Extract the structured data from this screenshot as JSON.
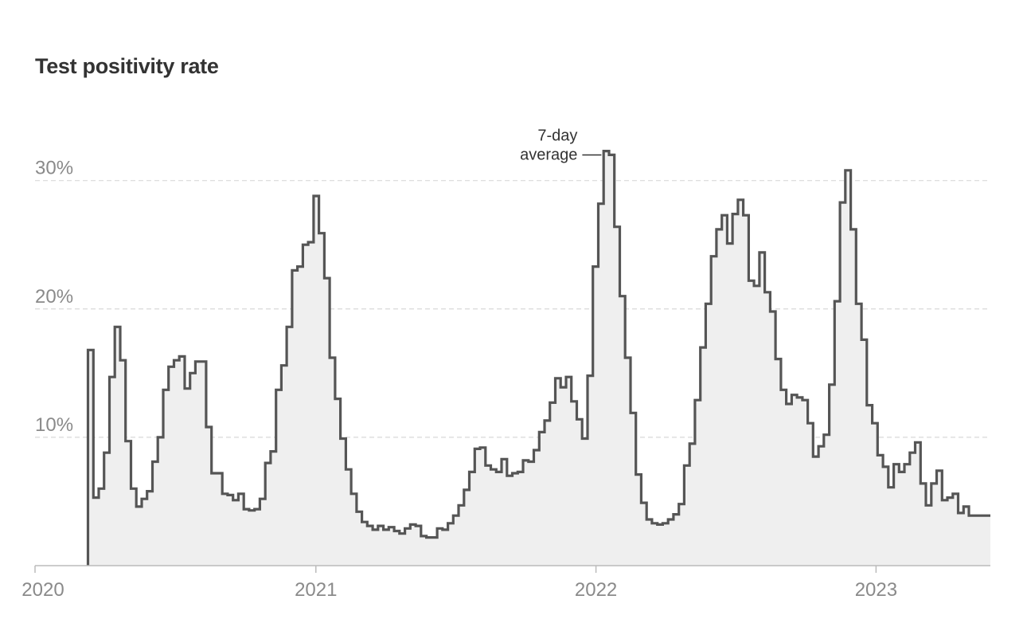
{
  "chart_data": {
    "type": "area",
    "title": "Test positivity rate",
    "subtitle": "",
    "xlabel": "",
    "ylabel": "",
    "x_ticks": [
      "2020",
      "2021",
      "2022",
      "2023"
    ],
    "y_ticks": [
      "10%",
      "20%",
      "30%"
    ],
    "y_tick_values": [
      10,
      20,
      30
    ],
    "xlim": [
      "2020-01-01",
      "2023-05-30"
    ],
    "ylim": [
      0,
      36
    ],
    "grid": "horizontal dashed",
    "step": true,
    "annotation": {
      "lines": [
        "7-day",
        "average"
      ],
      "x": "2022-01-06",
      "y": 32
    },
    "colors": {
      "line": "#555555",
      "fill": "#efefef",
      "grid": "#d9d9d9",
      "axis": "#bbbbbb"
    },
    "series": [
      {
        "name": "",
        "points": [
          [
            "2020-03-10",
            0
          ],
          [
            "2020-03-10",
            16.8
          ],
          [
            "2020-03-17",
            5.3
          ],
          [
            "2020-03-24",
            6
          ],
          [
            "2020-03-31",
            8.8
          ],
          [
            "2020-04-07",
            14.7
          ],
          [
            "2020-04-14",
            18.6
          ],
          [
            "2020-04-21",
            16
          ],
          [
            "2020-04-28",
            9.7
          ],
          [
            "2020-05-05",
            6
          ],
          [
            "2020-05-12",
            4.6
          ],
          [
            "2020-05-19",
            5.2
          ],
          [
            "2020-05-26",
            5.8
          ],
          [
            "2020-06-02",
            8.1
          ],
          [
            "2020-06-09",
            10
          ],
          [
            "2020-06-16",
            13.7
          ],
          [
            "2020-06-23",
            15.5
          ],
          [
            "2020-06-30",
            16
          ],
          [
            "2020-07-07",
            16.3
          ],
          [
            "2020-07-14",
            13.8
          ],
          [
            "2020-07-21",
            15
          ],
          [
            "2020-07-28",
            15.9
          ],
          [
            "2020-08-04",
            15.9
          ],
          [
            "2020-08-11",
            10.8
          ],
          [
            "2020-08-18",
            7.2
          ],
          [
            "2020-08-25",
            7.2
          ],
          [
            "2020-09-01",
            5.6
          ],
          [
            "2020-09-08",
            5.5
          ],
          [
            "2020-09-15",
            5.1
          ],
          [
            "2020-09-22",
            5.6
          ],
          [
            "2020-09-29",
            4.4
          ],
          [
            "2020-10-06",
            4.3
          ],
          [
            "2020-10-13",
            4.4
          ],
          [
            "2020-10-20",
            5.2
          ],
          [
            "2020-10-27",
            8
          ],
          [
            "2020-11-03",
            8.9
          ],
          [
            "2020-11-10",
            13.7
          ],
          [
            "2020-11-17",
            15.6
          ],
          [
            "2020-11-24",
            18.6
          ],
          [
            "2020-12-01",
            23
          ],
          [
            "2020-12-08",
            23.3
          ],
          [
            "2020-12-15",
            25
          ],
          [
            "2020-12-22",
            25.2
          ],
          [
            "2020-12-29",
            28.8
          ],
          [
            "2021-01-05",
            25.9
          ],
          [
            "2021-01-12",
            22.4
          ],
          [
            "2021-01-19",
            16.2
          ],
          [
            "2021-01-26",
            13
          ],
          [
            "2021-02-02",
            9.9
          ],
          [
            "2021-02-09",
            7.5
          ],
          [
            "2021-02-16",
            5.6
          ],
          [
            "2021-02-23",
            4.2
          ],
          [
            "2021-03-02",
            3.4
          ],
          [
            "2021-03-09",
            3.1
          ],
          [
            "2021-03-16",
            2.8
          ],
          [
            "2021-03-23",
            3.1
          ],
          [
            "2021-03-30",
            2.8
          ],
          [
            "2021-04-06",
            3
          ],
          [
            "2021-04-13",
            2.7
          ],
          [
            "2021-04-20",
            2.5
          ],
          [
            "2021-04-27",
            2.9
          ],
          [
            "2021-05-04",
            3.2
          ],
          [
            "2021-05-11",
            3.1
          ],
          [
            "2021-05-18",
            2.3
          ],
          [
            "2021-05-25",
            2.2
          ],
          [
            "2021-06-01",
            2.2
          ],
          [
            "2021-06-08",
            2.9
          ],
          [
            "2021-06-15",
            2.8
          ],
          [
            "2021-06-22",
            3.3
          ],
          [
            "2021-06-29",
            3.9
          ],
          [
            "2021-07-06",
            4.7
          ],
          [
            "2021-07-13",
            5.9
          ],
          [
            "2021-07-20",
            7.3
          ],
          [
            "2021-07-27",
            9.1
          ],
          [
            "2021-08-03",
            9.2
          ],
          [
            "2021-08-10",
            7.8
          ],
          [
            "2021-08-17",
            7.5
          ],
          [
            "2021-08-24",
            7.3
          ],
          [
            "2021-08-31",
            8.3
          ],
          [
            "2021-09-07",
            7
          ],
          [
            "2021-09-14",
            7.2
          ],
          [
            "2021-09-21",
            7.3
          ],
          [
            "2021-09-28",
            8.2
          ],
          [
            "2021-10-05",
            8.1
          ],
          [
            "2021-10-12",
            9
          ],
          [
            "2021-10-19",
            10.4
          ],
          [
            "2021-10-26",
            11.3
          ],
          [
            "2021-11-02",
            12.7
          ],
          [
            "2021-11-09",
            14.6
          ],
          [
            "2021-11-16",
            13.9
          ],
          [
            "2021-11-23",
            14.7
          ],
          [
            "2021-11-30",
            12.8
          ],
          [
            "2021-12-07",
            11.4
          ],
          [
            "2021-12-14",
            9.9
          ],
          [
            "2021-12-21",
            14.8
          ],
          [
            "2021-12-28",
            23.3
          ],
          [
            "2022-01-04",
            28.2
          ],
          [
            "2022-01-11",
            32.3
          ],
          [
            "2022-01-18",
            32
          ],
          [
            "2022-01-25",
            26.4
          ],
          [
            "2022-02-01",
            21
          ],
          [
            "2022-02-08",
            16.2
          ],
          [
            "2022-02-15",
            11.9
          ],
          [
            "2022-02-22",
            7.1
          ],
          [
            "2022-03-01",
            4.9
          ],
          [
            "2022-03-08",
            3.6
          ],
          [
            "2022-03-15",
            3.3
          ],
          [
            "2022-03-22",
            3.2
          ],
          [
            "2022-03-29",
            3.3
          ],
          [
            "2022-04-05",
            3.6
          ],
          [
            "2022-04-12",
            4
          ],
          [
            "2022-04-19",
            4.8
          ],
          [
            "2022-04-26",
            7.8
          ],
          [
            "2022-05-03",
            9.5
          ],
          [
            "2022-05-10",
            12.9
          ],
          [
            "2022-05-17",
            17
          ],
          [
            "2022-05-24",
            20.4
          ],
          [
            "2022-05-31",
            24.1
          ],
          [
            "2022-06-07",
            26.2
          ],
          [
            "2022-06-14",
            27.3
          ],
          [
            "2022-06-21",
            25.1
          ],
          [
            "2022-06-28",
            27.4
          ],
          [
            "2022-07-05",
            28.5
          ],
          [
            "2022-07-12",
            27.3
          ],
          [
            "2022-07-19",
            22.2
          ],
          [
            "2022-07-26",
            21.8
          ],
          [
            "2022-08-02",
            24.4
          ],
          [
            "2022-08-09",
            21.3
          ],
          [
            "2022-08-16",
            19.8
          ],
          [
            "2022-08-23",
            16.1
          ],
          [
            "2022-08-30",
            13.7
          ],
          [
            "2022-09-06",
            12.6
          ],
          [
            "2022-09-13",
            13.3
          ],
          [
            "2022-09-20",
            13.1
          ],
          [
            "2022-09-27",
            12.9
          ],
          [
            "2022-10-04",
            11.1
          ],
          [
            "2022-10-11",
            8.5
          ],
          [
            "2022-10-18",
            9.3
          ],
          [
            "2022-10-25",
            10.2
          ],
          [
            "2022-11-01",
            14.1
          ],
          [
            "2022-11-08",
            20.6
          ],
          [
            "2022-11-15",
            28.3
          ],
          [
            "2022-11-22",
            30.8
          ],
          [
            "2022-11-29",
            26.2
          ],
          [
            "2022-12-06",
            20.4
          ],
          [
            "2022-12-13",
            17.6
          ],
          [
            "2022-12-20",
            12.5
          ],
          [
            "2022-12-27",
            11.1
          ],
          [
            "2023-01-03",
            8.6
          ],
          [
            "2023-01-10",
            7.7
          ],
          [
            "2023-01-17",
            6.1
          ],
          [
            "2023-01-24",
            7.9
          ],
          [
            "2023-01-31",
            7.3
          ],
          [
            "2023-02-07",
            7.9
          ],
          [
            "2023-02-14",
            8.8
          ],
          [
            "2023-02-21",
            9.6
          ],
          [
            "2023-02-28",
            6.4
          ],
          [
            "2023-03-07",
            4.7
          ],
          [
            "2023-03-14",
            6.4
          ],
          [
            "2023-03-21",
            7.4
          ],
          [
            "2023-03-28",
            5.1
          ],
          [
            "2023-04-04",
            5.3
          ],
          [
            "2023-04-11",
            5.6
          ],
          [
            "2023-04-18",
            4.1
          ],
          [
            "2023-04-25",
            4.6
          ],
          [
            "2023-05-02",
            3.9
          ],
          [
            "2023-05-30",
            3.9
          ]
        ]
      }
    ]
  }
}
